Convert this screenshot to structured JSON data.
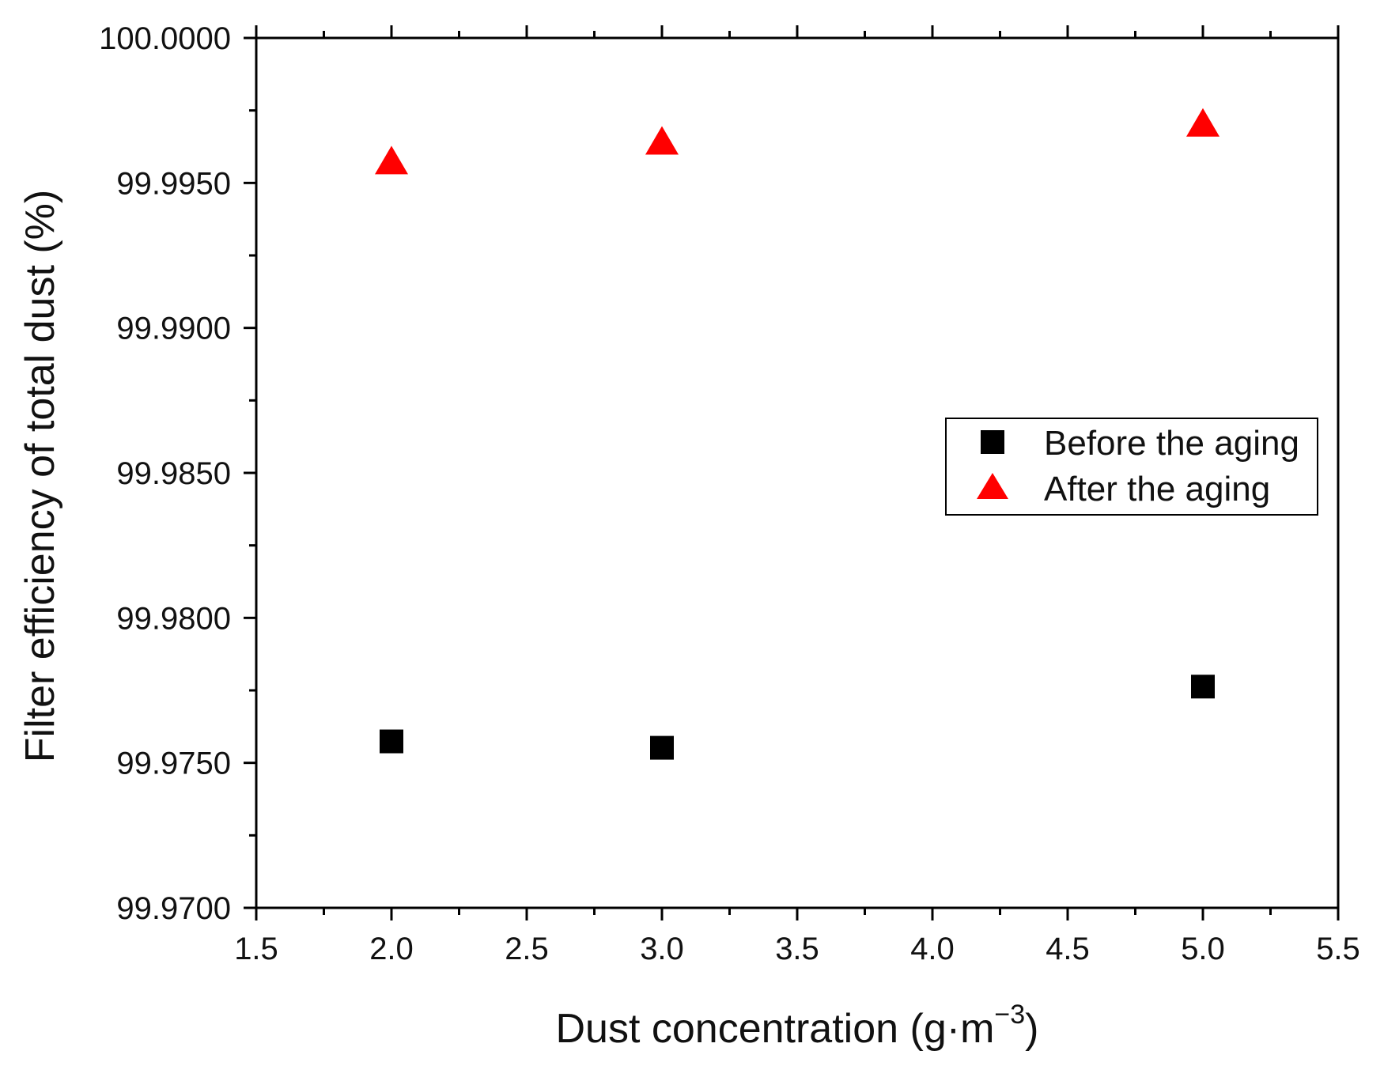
{
  "chart_data": {
    "type": "scatter",
    "title": "",
    "xlabel": "Dust concentration (g·m",
    "xlabel_superscript": "−3",
    "xlabel_suffix": ")",
    "ylabel": "Filter efficiency of total dust (%)",
    "xlim": [
      1.5,
      5.5
    ],
    "ylim": [
      99.97,
      100.0
    ],
    "x_ticks": [
      "1.5",
      "2.0",
      "2.5",
      "3.0",
      "3.5",
      "4.0",
      "4.5",
      "5.0",
      "5.5"
    ],
    "y_ticks": [
      "99.9700",
      "99.9750",
      "99.9800",
      "99.9850",
      "99.9900",
      "99.9950",
      "100.0000"
    ],
    "grid": false,
    "legend_position": "right",
    "series": [
      {
        "name": "Before the aging",
        "marker": "square",
        "color": "#000000",
        "x": [
          2.0,
          3.0,
          5.0
        ],
        "y": [
          99.97574,
          99.97552,
          99.97763
        ]
      },
      {
        "name": "After the aging",
        "marker": "triangle",
        "color": "#ff0000",
        "x": [
          2.0,
          3.0,
          5.0
        ],
        "y": [
          99.99568,
          99.99636,
          99.99698
        ]
      }
    ]
  }
}
